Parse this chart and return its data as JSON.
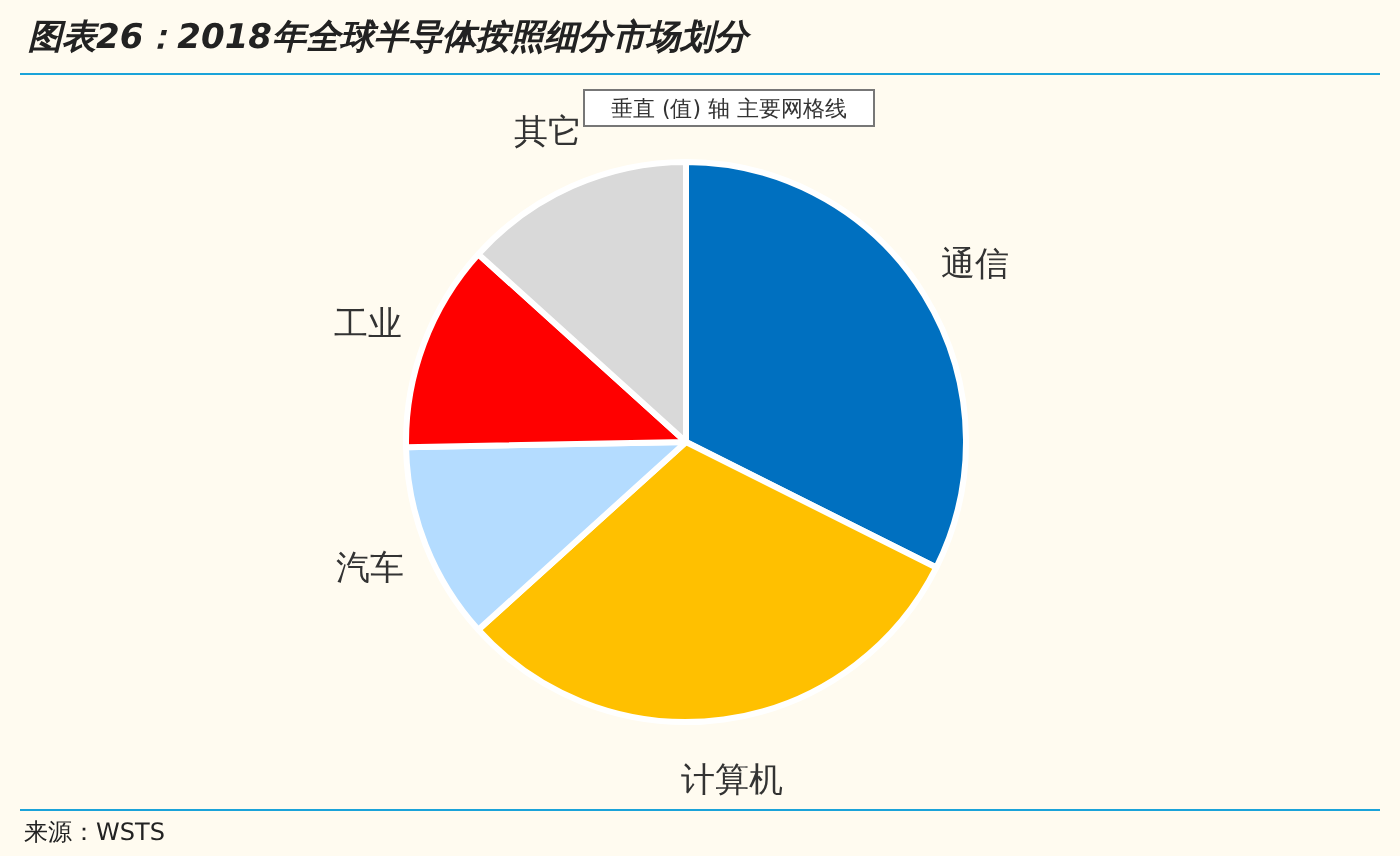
{
  "chart_data": {
    "type": "pie",
    "title": "图表26：2018年全球半导体按照细分市场划分",
    "categories": [
      "通信",
      "计算机",
      "汽车",
      "工业",
      "其它"
    ],
    "values": [
      32.4,
      30.9,
      11.4,
      12.0,
      13.3
    ],
    "colors": [
      "#0070c0",
      "#ffc000",
      "#b4dcff",
      "#ff0000",
      "#d9d9d9"
    ],
    "annotations": [
      "垂直 (值) 轴 主要网格线",
      "来源：WSTS"
    ]
  }
}
